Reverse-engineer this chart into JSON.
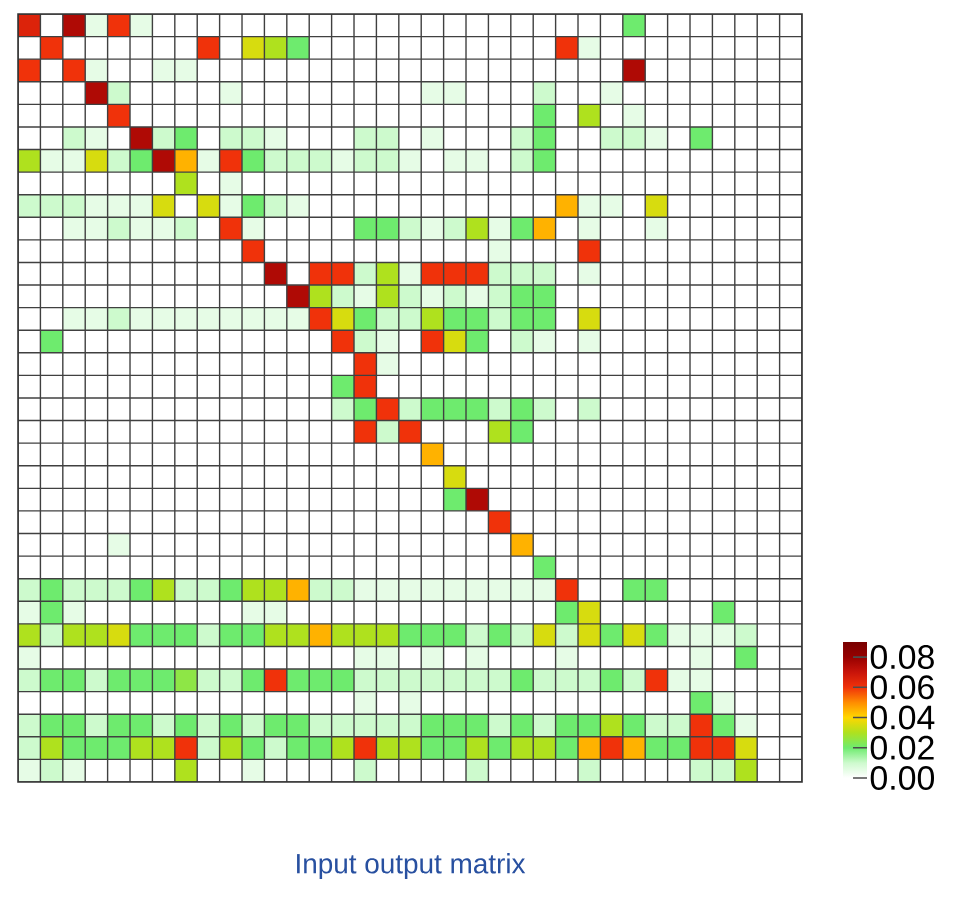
{
  "chart_data": {
    "type": "heatmap",
    "title": "Input output matrix",
    "tick_labels": false,
    "categories": [
      null,
      null,
      null,
      null,
      null,
      null,
      null,
      null,
      null,
      null,
      null,
      null,
      null,
      null,
      null,
      null,
      null,
      null,
      null,
      null,
      null,
      null,
      null,
      null,
      null,
      null,
      null,
      null,
      null,
      null,
      null,
      null,
      null,
      null,
      null
    ],
    "y_categories": [
      null,
      null,
      null,
      null,
      null,
      null,
      null,
      null,
      null,
      null,
      null,
      null,
      null,
      null,
      null,
      null,
      null,
      null,
      null,
      null,
      null,
      null,
      null,
      null,
      null,
      null,
      null,
      null,
      null,
      null,
      null,
      null,
      null,
      null
    ],
    "clim": [
      0,
      0.09
    ],
    "cticks": [
      {
        "value": 0,
        "label": "0.00"
      },
      0.02,
      0.04,
      0.06,
      0.08
    ],
    "cells": [
      [
        0.065,
        0,
        0.075,
        0.005,
        0.06,
        0.005,
        0,
        0,
        0,
        0,
        0,
        0,
        0,
        0,
        0,
        0,
        0,
        0,
        0,
        0,
        0,
        0,
        0,
        0,
        0,
        0,
        0,
        0.02,
        0,
        0,
        0,
        0,
        0,
        0,
        0
      ],
      [
        0,
        0.06,
        0,
        0,
        0,
        0,
        0,
        0,
        0.06,
        0,
        0.035,
        0.03,
        0.02,
        0,
        0,
        0,
        0,
        0,
        0,
        0,
        0,
        0,
        0,
        0,
        0.06,
        0.005,
        0,
        0,
        0,
        0,
        0,
        0,
        0,
        0,
        0
      ],
      [
        0.06,
        0,
        0.06,
        0.005,
        0,
        0,
        0.005,
        0.005,
        0,
        0,
        0,
        0,
        0,
        0,
        0,
        0,
        0,
        0,
        0,
        0,
        0,
        0,
        0,
        0,
        0,
        0,
        0,
        0.075,
        0,
        0,
        0,
        0,
        0,
        0,
        0
      ],
      [
        0,
        0,
        0,
        0.075,
        0.01,
        0,
        0,
        0,
        0,
        0.005,
        0,
        0,
        0,
        0,
        0,
        0,
        0,
        0,
        0.005,
        0.005,
        0,
        0,
        0,
        0.01,
        0,
        0,
        0.005,
        0,
        0,
        0,
        0,
        0,
        0,
        0,
        0
      ],
      [
        0,
        0,
        0,
        0,
        0.06,
        0,
        0,
        0,
        0,
        0,
        0,
        0,
        0,
        0,
        0,
        0,
        0,
        0,
        0,
        0,
        0,
        0,
        0,
        0.02,
        0,
        0.03,
        0,
        0.005,
        0,
        0,
        0,
        0,
        0,
        0,
        0
      ],
      [
        0,
        0,
        0.01,
        0.005,
        0,
        0.075,
        0.01,
        0.02,
        0,
        0.01,
        0.01,
        0.005,
        0,
        0,
        0,
        0.01,
        0.01,
        0,
        0.005,
        0,
        0,
        0,
        0.01,
        0.02,
        0,
        0,
        0.01,
        0.01,
        0.005,
        0,
        0.02,
        0,
        0,
        0,
        0
      ],
      [
        0.03,
        0.005,
        0.005,
        0.035,
        0.01,
        0.02,
        0.075,
        0.045,
        0.005,
        0.06,
        0.02,
        0.01,
        0.01,
        0.01,
        0.005,
        0.01,
        0.01,
        0.005,
        0,
        0.005,
        0.005,
        0,
        0.01,
        0.02,
        0,
        0,
        0,
        0,
        0,
        0,
        0,
        0,
        0,
        0,
        0
      ],
      [
        0,
        0,
        0,
        0,
        0,
        0,
        0,
        0.03,
        0,
        0.005,
        0,
        0,
        0,
        0,
        0,
        0,
        0,
        0,
        0,
        0,
        0,
        0,
        0,
        0,
        0,
        0,
        0,
        0,
        0,
        0,
        0,
        0,
        0,
        0,
        0
      ],
      [
        0.01,
        0.01,
        0.01,
        0.005,
        0.005,
        0.005,
        0.035,
        0,
        0.035,
        0.005,
        0.02,
        0.01,
        0.005,
        0,
        0,
        0,
        0,
        0,
        0,
        0,
        0,
        0,
        0,
        0,
        0.045,
        0.005,
        0.005,
        0,
        0.035,
        0,
        0,
        0,
        0,
        0,
        0
      ],
      [
        0,
        0,
        0.005,
        0.005,
        0.01,
        0.005,
        0.005,
        0.01,
        0,
        0.06,
        0.005,
        0,
        0,
        0,
        0,
        0.02,
        0.02,
        0.01,
        0.005,
        0.01,
        0.03,
        0.005,
        0.02,
        0.045,
        0,
        0.005,
        0,
        0,
        0.005,
        0,
        0,
        0,
        0,
        0,
        0
      ],
      [
        0,
        0,
        0,
        0,
        0,
        0,
        0,
        0,
        0,
        0,
        0.06,
        0,
        0,
        0,
        0,
        0,
        0,
        0,
        0,
        0,
        0,
        0.005,
        0,
        0,
        0,
        0.06,
        0,
        0,
        0,
        0,
        0,
        0,
        0,
        0,
        0
      ],
      [
        0,
        0,
        0,
        0,
        0,
        0,
        0,
        0,
        0,
        0,
        0,
        0.075,
        0,
        0.06,
        0.06,
        0.01,
        0.03,
        0.005,
        0.06,
        0.06,
        0.06,
        0.01,
        0.01,
        0.01,
        0,
        0.005,
        0,
        0,
        0,
        0,
        0,
        0,
        0,
        0,
        0
      ],
      [
        0,
        0,
        0,
        0,
        0,
        0,
        0,
        0,
        0,
        0,
        0,
        0,
        0.075,
        0.03,
        0.01,
        0.005,
        0.03,
        0.01,
        0.005,
        0.01,
        0.005,
        0.01,
        0.02,
        0.02,
        0,
        0,
        0,
        0,
        0,
        0,
        0,
        0,
        0,
        0,
        0
      ],
      [
        0,
        0,
        0.005,
        0.005,
        0.01,
        0.005,
        0.005,
        0.005,
        0.005,
        0.005,
        0.005,
        0.005,
        0.005,
        0.06,
        0.035,
        0.02,
        0.01,
        0.01,
        0.03,
        0.02,
        0.02,
        0.01,
        0.02,
        0.02,
        0,
        0.035,
        0,
        0,
        0,
        0,
        0,
        0,
        0,
        0,
        0
      ],
      [
        0,
        0.02,
        0,
        0,
        0,
        0,
        0,
        0,
        0,
        0,
        0,
        0,
        0,
        0,
        0.06,
        0.01,
        0.005,
        0,
        0.06,
        0.035,
        0.02,
        0,
        0.01,
        0.005,
        0,
        0.005,
        0,
        0,
        0,
        0,
        0,
        0,
        0,
        0,
        0
      ],
      [
        0,
        0,
        0,
        0,
        0,
        0,
        0,
        0,
        0,
        0,
        0,
        0,
        0,
        0,
        0,
        0.06,
        0.005,
        0,
        0,
        0,
        0,
        0,
        0,
        0,
        0,
        0,
        0,
        0,
        0,
        0,
        0,
        0,
        0,
        0,
        0
      ],
      [
        0,
        0,
        0,
        0,
        0,
        0,
        0,
        0,
        0,
        0,
        0,
        0,
        0,
        0,
        0.02,
        0.06,
        0,
        0,
        0,
        0,
        0,
        0,
        0,
        0,
        0,
        0,
        0,
        0,
        0,
        0,
        0,
        0,
        0,
        0,
        0
      ],
      [
        0,
        0,
        0,
        0,
        0,
        0,
        0,
        0,
        0,
        0,
        0,
        0,
        0,
        0,
        0.01,
        0.02,
        0.06,
        0.01,
        0.02,
        0.02,
        0.02,
        0.01,
        0.02,
        0.01,
        0,
        0.01,
        0,
        0,
        0,
        0,
        0,
        0,
        0,
        0,
        0
      ],
      [
        0,
        0,
        0,
        0,
        0,
        0,
        0,
        0,
        0,
        0,
        0,
        0,
        0,
        0,
        0,
        0.06,
        0.01,
        0.06,
        0,
        0,
        0,
        0.03,
        0.02,
        0,
        0,
        0,
        0,
        0,
        0,
        0,
        0,
        0,
        0,
        0,
        0
      ],
      [
        0,
        0,
        0,
        0,
        0,
        0,
        0,
        0,
        0,
        0,
        0,
        0,
        0,
        0,
        0,
        0,
        0,
        0,
        0.045,
        0,
        0,
        0,
        0,
        0,
        0,
        0,
        0,
        0,
        0,
        0,
        0,
        0,
        0,
        0,
        0
      ],
      [
        0,
        0,
        0,
        0,
        0,
        0,
        0,
        0,
        0,
        0,
        0,
        0,
        0,
        0,
        0,
        0,
        0,
        0,
        0,
        0.035,
        0,
        0,
        0,
        0,
        0,
        0,
        0,
        0,
        0,
        0,
        0,
        0,
        0,
        0,
        0
      ],
      [
        0,
        0,
        0,
        0,
        0,
        0,
        0,
        0,
        0,
        0,
        0,
        0,
        0,
        0,
        0,
        0,
        0,
        0,
        0,
        0.02,
        0.075,
        0,
        0,
        0,
        0,
        0,
        0,
        0,
        0,
        0,
        0,
        0,
        0,
        0,
        0
      ],
      [
        0,
        0,
        0,
        0,
        0,
        0,
        0,
        0,
        0,
        0,
        0,
        0,
        0,
        0,
        0,
        0,
        0,
        0,
        0,
        0,
        0,
        0.06,
        0,
        0,
        0,
        0,
        0,
        0,
        0,
        0,
        0,
        0,
        0,
        0,
        0
      ],
      [
        0,
        0,
        0,
        0,
        0.005,
        0,
        0,
        0,
        0,
        0,
        0,
        0,
        0,
        0,
        0,
        0,
        0,
        0,
        0,
        0,
        0,
        0,
        0.045,
        0,
        0,
        0,
        0,
        0,
        0,
        0,
        0,
        0,
        0,
        0,
        0
      ],
      [
        0,
        0,
        0,
        0,
        0,
        0,
        0,
        0,
        0,
        0,
        0,
        0,
        0,
        0,
        0,
        0,
        0,
        0,
        0,
        0,
        0,
        0,
        0,
        0.02,
        0,
        0,
        0,
        0,
        0,
        0,
        0,
        0,
        0,
        0,
        0
      ],
      [
        0.01,
        0.02,
        0.01,
        0.01,
        0.01,
        0.02,
        0.03,
        0.01,
        0.01,
        0.02,
        0.03,
        0.03,
        0.045,
        0.01,
        0.01,
        0.005,
        0.005,
        0.005,
        0.005,
        0.005,
        0.005,
        0.005,
        0.005,
        0.005,
        0.06,
        0,
        0,
        0.02,
        0.02,
        0,
        0,
        0,
        0,
        0,
        0
      ],
      [
        0.005,
        0.02,
        0.005,
        0,
        0,
        0,
        0,
        0,
        0,
        0,
        0.005,
        0.005,
        0,
        0,
        0,
        0,
        0,
        0,
        0,
        0,
        0,
        0,
        0,
        0,
        0.02,
        0.035,
        0,
        0,
        0,
        0,
        0,
        0.02,
        0,
        0,
        0
      ],
      [
        0.03,
        0.01,
        0.03,
        0.03,
        0.035,
        0.02,
        0.02,
        0.02,
        0.01,
        0.02,
        0.02,
        0.03,
        0.03,
        0.045,
        0.03,
        0.03,
        0.03,
        0.02,
        0.02,
        0.02,
        0.01,
        0.02,
        0.01,
        0.035,
        0.01,
        0.035,
        0.02,
        0.035,
        0.02,
        0.005,
        0.005,
        0.005,
        0.01,
        0,
        0
      ],
      [
        0.005,
        0,
        0,
        0,
        0,
        0,
        0,
        0,
        0,
        0,
        0,
        0,
        0,
        0,
        0,
        0.005,
        0.005,
        0,
        0.005,
        0,
        0.005,
        0,
        0,
        0,
        0.005,
        0,
        0,
        0,
        0,
        0,
        0.005,
        0,
        0.02,
        0,
        0
      ],
      [
        0.01,
        0.02,
        0.02,
        0.01,
        0.02,
        0.02,
        0.02,
        0.025,
        0.01,
        0.01,
        0.02,
        0.06,
        0.02,
        0.02,
        0.02,
        0.01,
        0.01,
        0.01,
        0.01,
        0.01,
        0.01,
        0.01,
        0.02,
        0.01,
        0.01,
        0.01,
        0.02,
        0.01,
        0.06,
        0.005,
        0.005,
        0,
        0,
        0,
        0
      ],
      [
        0,
        0,
        0,
        0,
        0,
        0,
        0,
        0,
        0,
        0,
        0,
        0,
        0,
        0,
        0,
        0.005,
        0,
        0.005,
        0,
        0,
        0,
        0,
        0,
        0,
        0,
        0,
        0,
        0,
        0,
        0,
        0.02,
        0.005,
        0,
        0,
        0
      ],
      [
        0.01,
        0.02,
        0.02,
        0.01,
        0.02,
        0.02,
        0.01,
        0.02,
        0.01,
        0.02,
        0.01,
        0.02,
        0.02,
        0.01,
        0.01,
        0.01,
        0.01,
        0.01,
        0.02,
        0.02,
        0.02,
        0.01,
        0.02,
        0.01,
        0.02,
        0.02,
        0.03,
        0.02,
        0.01,
        0.01,
        0.06,
        0.02,
        0.005,
        0,
        0
      ],
      [
        0.01,
        0.03,
        0.02,
        0.02,
        0.02,
        0.03,
        0.03,
        0.06,
        0.01,
        0.03,
        0.02,
        0.01,
        0.02,
        0.02,
        0.03,
        0.06,
        0.03,
        0.03,
        0.02,
        0.02,
        0.03,
        0.02,
        0.03,
        0.03,
        0.02,
        0.045,
        0.06,
        0.045,
        0.02,
        0.02,
        0.06,
        0.06,
        0.035,
        0,
        0
      ],
      [
        0.005,
        0.01,
        0.005,
        0,
        0,
        0,
        0,
        0.03,
        0,
        0,
        0.005,
        0,
        0,
        0,
        0,
        0.01,
        0,
        0,
        0,
        0,
        0.01,
        0,
        0,
        0,
        0,
        0.01,
        0,
        0,
        0,
        0,
        0.01,
        0.01,
        0.03,
        0,
        0
      ]
    ]
  }
}
